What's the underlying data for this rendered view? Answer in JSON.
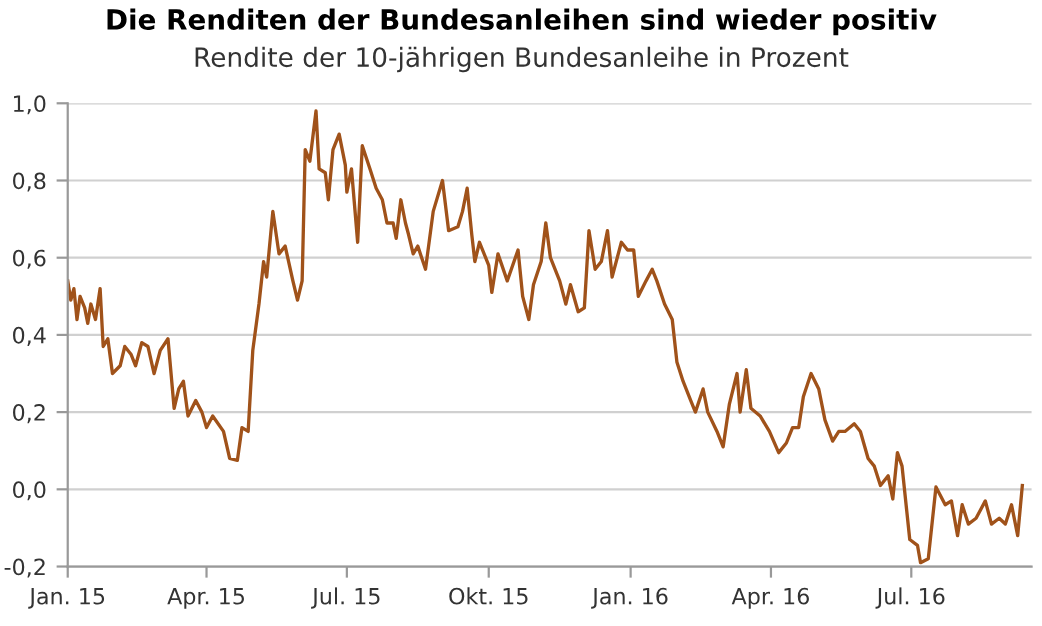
{
  "chart_data": {
    "type": "line",
    "title": "Die Renditen der Bundesanleihen sind wieder positiv",
    "subtitle": "Rendite der 10-jährigen Bundesanleihe in Prozent",
    "x": [
      "2015-01-01",
      "2015-01-03",
      "2015-01-05",
      "2015-01-07",
      "2015-01-09",
      "2015-01-12",
      "2015-01-14",
      "2015-01-16",
      "2015-01-19",
      "2015-01-22",
      "2015-01-24",
      "2015-01-27",
      "2015-01-30",
      "2015-02-04",
      "2015-02-07",
      "2015-02-11",
      "2015-02-14",
      "2015-02-18",
      "2015-02-22",
      "2015-02-26",
      "2015-03-02",
      "2015-03-07",
      "2015-03-11",
      "2015-03-14",
      "2015-03-17",
      "2015-03-20",
      "2015-03-25",
      "2015-03-29",
      "2015-04-01",
      "2015-04-05",
      "2015-04-12",
      "2015-04-16",
      "2015-04-21",
      "2015-04-24",
      "2015-04-28",
      "2015-05-01",
      "2015-05-05",
      "2015-05-08",
      "2015-05-10",
      "2015-05-14",
      "2015-05-18",
      "2015-05-22",
      "2015-05-27",
      "2015-05-30",
      "2015-06-02",
      "2015-06-04",
      "2015-06-07",
      "2015-06-11",
      "2015-06-13",
      "2015-06-17",
      "2015-06-19",
      "2015-06-22",
      "2015-06-26",
      "2015-06-30",
      "2015-07-01",
      "2015-07-04",
      "2015-07-08",
      "2015-07-11",
      "2015-07-16",
      "2015-07-20",
      "2015-07-24",
      "2015-07-27",
      "2015-07-31",
      "2015-08-02",
      "2015-08-05",
      "2015-08-08",
      "2015-08-10",
      "2015-08-13",
      "2015-08-16",
      "2015-08-21",
      "2015-08-26",
      "2015-09-01",
      "2015-09-05",
      "2015-09-11",
      "2015-09-14",
      "2015-09-17",
      "2015-09-20",
      "2015-09-22",
      "2015-09-25",
      "2015-10-01",
      "2015-10-03",
      "2015-10-07",
      "2015-10-13",
      "2015-10-20",
      "2015-10-23",
      "2015-10-27",
      "2015-10-30",
      "2015-11-04",
      "2015-11-07",
      "2015-11-10",
      "2015-11-16",
      "2015-11-20",
      "2015-11-23",
      "2015-11-28",
      "2015-12-02",
      "2015-12-05",
      "2015-12-09",
      "2015-12-13",
      "2015-12-17",
      "2015-12-20",
      "2015-12-26",
      "2015-12-30",
      "2016-01-03",
      "2016-01-06",
      "2016-01-11",
      "2016-01-15",
      "2016-01-18",
      "2016-01-23",
      "2016-01-28",
      "2016-01-31",
      "2016-02-04",
      "2016-02-09",
      "2016-02-12",
      "2016-02-17",
      "2016-02-20",
      "2016-02-26",
      "2016-03-01",
      "2016-03-05",
      "2016-03-10",
      "2016-03-12",
      "2016-03-16",
      "2016-03-19",
      "2016-03-25",
      "2016-03-31",
      "2016-04-06",
      "2016-04-11",
      "2016-04-15",
      "2016-04-19",
      "2016-04-22",
      "2016-04-27",
      "2016-05-02",
      "2016-05-06",
      "2016-05-11",
      "2016-05-15",
      "2016-05-19",
      "2016-05-25",
      "2016-05-29",
      "2016-06-03",
      "2016-06-07",
      "2016-06-11",
      "2016-06-16",
      "2016-06-19",
      "2016-06-22",
      "2016-06-25",
      "2016-06-30",
      "2016-07-05",
      "2016-07-07",
      "2016-07-12",
      "2016-07-17",
      "2016-07-23",
      "2016-07-27",
      "2016-07-31",
      "2016-08-03",
      "2016-08-07",
      "2016-08-12",
      "2016-08-18",
      "2016-08-22",
      "2016-08-27",
      "2016-08-31",
      "2016-09-04",
      "2016-09-08",
      "2016-09-11"
    ],
    "series": [
      {
        "color": "#a0521a",
        "values": [
          0.54,
          0.49,
          0.52,
          0.44,
          0.5,
          0.47,
          0.43,
          0.48,
          0.44,
          0.52,
          0.37,
          0.39,
          0.3,
          0.32,
          0.37,
          0.35,
          0.32,
          0.38,
          0.37,
          0.3,
          0.36,
          0.39,
          0.21,
          0.26,
          0.28,
          0.19,
          0.23,
          0.2,
          0.16,
          0.19,
          0.15,
          0.08,
          0.075,
          0.16,
          0.15,
          0.36,
          0.48,
          0.59,
          0.55,
          0.72,
          0.61,
          0.63,
          0.54,
          0.49,
          0.54,
          0.88,
          0.85,
          0.98,
          0.83,
          0.82,
          0.75,
          0.88,
          0.92,
          0.84,
          0.77,
          0.83,
          0.64,
          0.89,
          0.83,
          0.78,
          0.75,
          0.69,
          0.69,
          0.65,
          0.75,
          0.69,
          0.66,
          0.61,
          0.63,
          0.57,
          0.72,
          0.8,
          0.67,
          0.68,
          0.72,
          0.78,
          0.66,
          0.59,
          0.64,
          0.58,
          0.51,
          0.61,
          0.54,
          0.62,
          0.5,
          0.44,
          0.53,
          0.59,
          0.69,
          0.6,
          0.54,
          0.48,
          0.53,
          0.46,
          0.47,
          0.67,
          0.57,
          0.59,
          0.67,
          0.55,
          0.64,
          0.62,
          0.62,
          0.5,
          0.54,
          0.57,
          0.54,
          0.48,
          0.44,
          0.33,
          0.28,
          0.23,
          0.2,
          0.26,
          0.2,
          0.15,
          0.11,
          0.22,
          0.3,
          0.2,
          0.31,
          0.21,
          0.19,
          0.15,
          0.095,
          0.12,
          0.16,
          0.16,
          0.24,
          0.3,
          0.26,
          0.18,
          0.125,
          0.15,
          0.15,
          0.17,
          0.15,
          0.08,
          0.06,
          0.01,
          0.035,
          -0.025,
          0.095,
          0.06,
          -0.13,
          -0.145,
          -0.19,
          -0.18,
          0.006,
          -0.04,
          -0.03,
          -0.12,
          -0.04,
          -0.09,
          -0.075,
          -0.03,
          -0.09,
          -0.075,
          -0.09,
          -0.04,
          -0.12,
          0.01
        ]
      }
    ],
    "xlim": [
      "2015-01-01",
      "2016-09-17"
    ],
    "xticks": [
      {
        "value": "2015-01-01",
        "label": "Jan. 15"
      },
      {
        "value": "2015-04-01",
        "label": "Apr. 15"
      },
      {
        "value": "2015-07-01",
        "label": "Jul. 15"
      },
      {
        "value": "2015-10-01",
        "label": "Okt. 15"
      },
      {
        "value": "2016-01-01",
        "label": "Jan. 16"
      },
      {
        "value": "2016-04-01",
        "label": "Apr. 16"
      },
      {
        "value": "2016-07-01",
        "label": "Jul. 16"
      }
    ],
    "ylim": [
      -0.2,
      1.0
    ],
    "yticks": [
      {
        "value": -0.2,
        "label": "-0,2"
      },
      {
        "value": 0.0,
        "label": "0,0"
      },
      {
        "value": 0.2,
        "label": "0,2"
      },
      {
        "value": 0.4,
        "label": "0,4"
      },
      {
        "value": 0.6,
        "label": "0,6"
      },
      {
        "value": 0.8,
        "label": "0,8"
      },
      {
        "value": 1.0,
        "label": "1,0"
      }
    ],
    "grid": "y",
    "legend": false
  }
}
